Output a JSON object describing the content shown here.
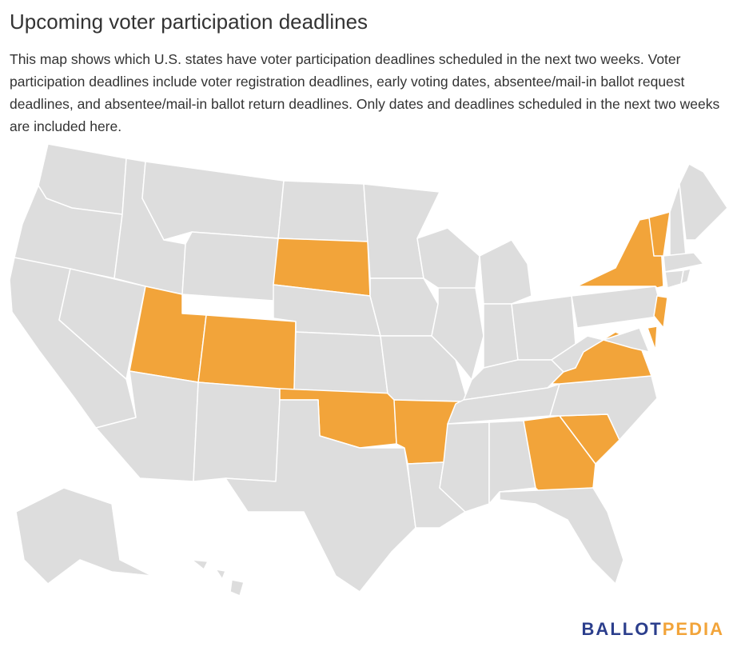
{
  "header": {
    "title": "Upcoming voter participation deadlines",
    "description": "This map shows which U.S. states have voter participation deadlines scheduled in the next two weeks. Voter participation deadlines include voter registration deadlines, early voting dates, absentee/mail-in ballot request deadlines, and absentee/mail-in ballot return deadlines. Only dates and deadlines scheduled in the next two weeks are included here."
  },
  "map": {
    "default_color": "#dddddd",
    "highlight_color": "#f2a43a",
    "border_color": "#ffffff",
    "highlighted_states": [
      "SD",
      "UT",
      "CO",
      "OK",
      "AR",
      "GA",
      "SC",
      "VA",
      "NY",
      "VT",
      "NJ",
      "DE"
    ]
  },
  "logo": {
    "part1": "BALLOT",
    "part2": "PEDIA",
    "color1": "#2b3e8c",
    "color2": "#f2a43a"
  }
}
